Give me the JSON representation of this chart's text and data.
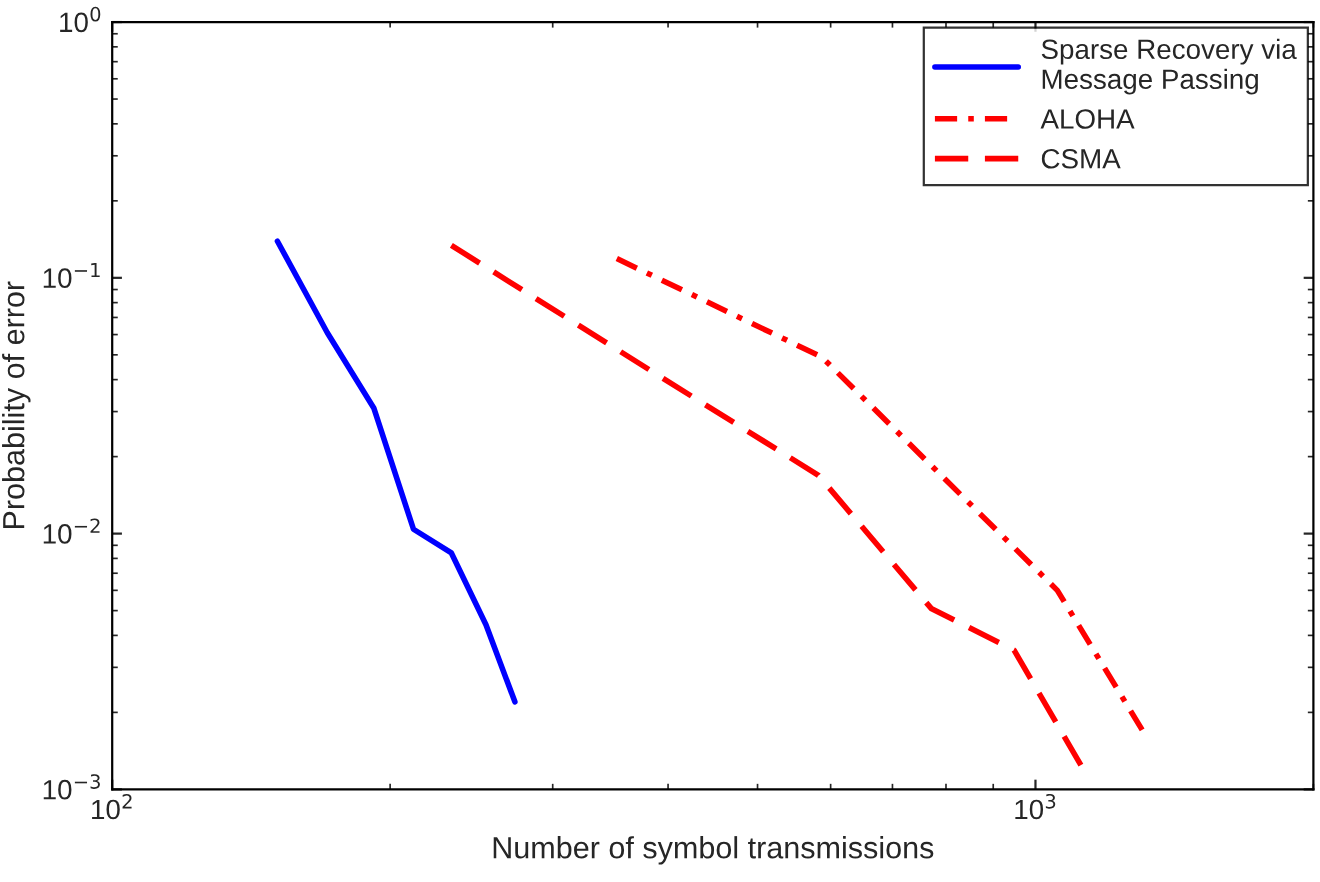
{
  "chart_data": {
    "type": "line",
    "xlabel": "Number of symbol transmissions",
    "ylabel": "Probability of error",
    "log": "xy",
    "xlim": [
      100,
      2000
    ],
    "ylim": [
      0.001,
      1
    ],
    "xticks": [
      {
        "value": 100,
        "label": "10$^{2}$"
      },
      {
        "value": 1000,
        "label": "10$^{3}$"
      }
    ],
    "yticks": [
      {
        "value": 0.001,
        "label": "10$^{−3}$"
      },
      {
        "value": 0.01,
        "label": "10$^{−2}$"
      },
      {
        "value": 0.1,
        "label": "10$^{−1}$"
      },
      {
        "value": 1,
        "label": "10$^{0}$"
      }
    ],
    "grid": false,
    "legend": "top right",
    "marker": "none",
    "series": [
      {
        "name": "Sparse Recovery via\nMessage Passing",
        "color": "#0000ff",
        "line_style": "solid",
        "x": [
          151,
          171,
          192,
          212,
          233,
          254,
          273
        ],
        "values": [
          0.139,
          0.061,
          0.031,
          0.0104,
          0.0084,
          0.0044,
          0.0022
        ]
      },
      {
        "name": "ALOHA",
        "color": "#ff0000",
        "line_style": "dashdot",
        "x": [
          352,
          587,
          1056,
          1306
        ],
        "values": [
          0.119,
          0.049,
          0.006,
          0.0017
        ]
      },
      {
        "name": "CSMA",
        "color": "#ff0000",
        "line_style": "dashed",
        "x": [
          233,
          397,
          582,
          771,
          948,
          1128
        ],
        "values": [
          0.134,
          0.04,
          0.0169,
          0.0051,
          0.0035,
          0.00119
        ]
      }
    ]
  }
}
